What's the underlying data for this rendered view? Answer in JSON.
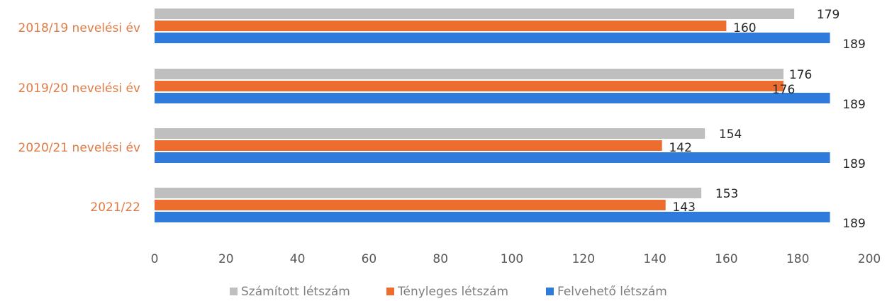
{
  "chart_data": {
    "type": "bar",
    "orientation": "horizontal",
    "categories": [
      "2018/19 nevelési év",
      "2019/20 nevelési év",
      "2020/21 nevelési év",
      "2021/22"
    ],
    "series": [
      {
        "name": "Számított létszám",
        "values": [
          179,
          176,
          154,
          153
        ],
        "color": "#bfbfbf"
      },
      {
        "name": "Tényleges létszám",
        "values": [
          160,
          176,
          142,
          143
        ],
        "color": "#ed6d2f"
      },
      {
        "name": "Felvehető létszám",
        "values": [
          189,
          189,
          189,
          189
        ],
        "color": "#2f7bdb"
      }
    ],
    "xticks": [
      "0",
      "20",
      "40",
      "60",
      "80",
      "100",
      "120",
      "140",
      "160",
      "180",
      "200"
    ],
    "xlim": [
      0,
      200
    ],
    "grid": false,
    "legend_position": "bottom",
    "category_label_color": "#e07b45"
  }
}
